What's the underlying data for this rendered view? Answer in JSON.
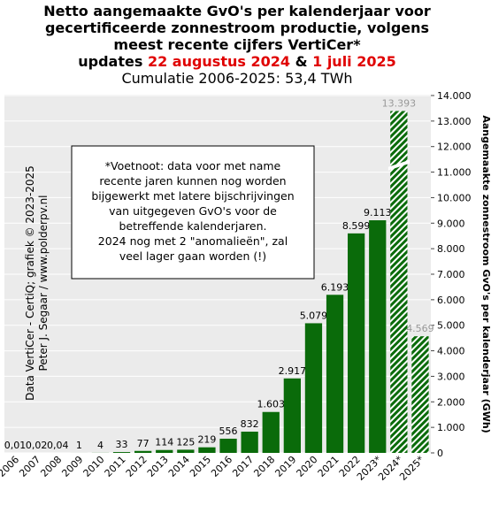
{
  "chart_data": {
    "type": "bar",
    "title": [
      "Netto aangemaakte GvO's per kalenderjaar voor",
      "gecertificeerde zonnestroom productie, volgens",
      "meest recente cijfers VertiCer*"
    ],
    "update_line": [
      "updates",
      "22 augustus 2024",
      "&",
      "1 juli  2025"
    ],
    "subtitle": "Cumulatie 2006-2025: 53,4 TWh",
    "y_label": "Aangemaakte zonnestroom GvO's per kalenderjaar (GWh)",
    "credit": [
      "Data VertiCer - CertiQ; grafiek © 2023-2025",
      "Peter J. Segaar / www.polderpv.nl"
    ],
    "note": [
      "*Voetnoot: data voor met name",
      "recente jaren kunnen nog worden",
      "bijgewerkt met latere bijschrijvingen",
      "van uitgegeven GvO's voor de",
      "betreffende kalenderjaren.",
      "2024 nog met 2 \"anomalieën\",  zal",
      "veel lager gaan worden (!)"
    ],
    "categories": [
      "2006",
      "2007",
      "2008",
      "2009",
      "2010",
      "2011",
      "2012",
      "2013",
      "2014",
      "2015",
      "2016",
      "2017",
      "2018",
      "2019",
      "2020",
      "2021",
      "2022",
      "2023*",
      "2024*",
      "2025*"
    ],
    "values": [
      0.01,
      0.02,
      0.04,
      1,
      4,
      33,
      77,
      114,
      125,
      219,
      556,
      832,
      1603,
      2917,
      5079,
      6193,
      8599,
      9113,
      13393,
      4569
    ],
    "value_labels": [
      "0,01",
      "0,02",
      "0,04",
      "1",
      "4",
      "33",
      "77",
      "114",
      "125",
      "219",
      "556",
      "832",
      "1.603",
      "2.917",
      "5.079",
      "6.193",
      "8.599",
      "9.113",
      "13.393",
      "4.569"
    ],
    "bar_style": [
      "solid",
      "solid",
      "solid",
      "solid",
      "solid",
      "solid",
      "solid",
      "solid",
      "solid",
      "solid",
      "solid",
      "solid",
      "solid",
      "solid",
      "solid",
      "solid",
      "solid",
      "solid",
      "hatched",
      "hatched"
    ],
    "color": "#0a6b0a",
    "ylim": [
      0,
      14000
    ],
    "yticks": [
      0,
      {
        "value": 1000,
        "label": "1.000"
      },
      {
        "value": 2000,
        "label": "2.000"
      },
      {
        "value": 3000,
        "label": "3.000"
      },
      {
        "value": 4000,
        "label": "4.000"
      },
      {
        "value": 5000,
        "label": "5.000"
      },
      {
        "value": 6000,
        "label": "6.000"
      },
      {
        "value": 7000,
        "label": "7.000"
      },
      {
        "value": 8000,
        "label": "8.000"
      },
      {
        "value": 9000,
        "label": "9.000"
      },
      {
        "value": 10000,
        "label": "10.000"
      },
      {
        "value": 11000,
        "label": "11.000"
      },
      {
        "value": 12000,
        "label": "12.000"
      },
      {
        "value": 13000,
        "label": "13.000"
      },
      {
        "value": 14000,
        "label": "14.000"
      }
    ],
    "grid": true
  }
}
